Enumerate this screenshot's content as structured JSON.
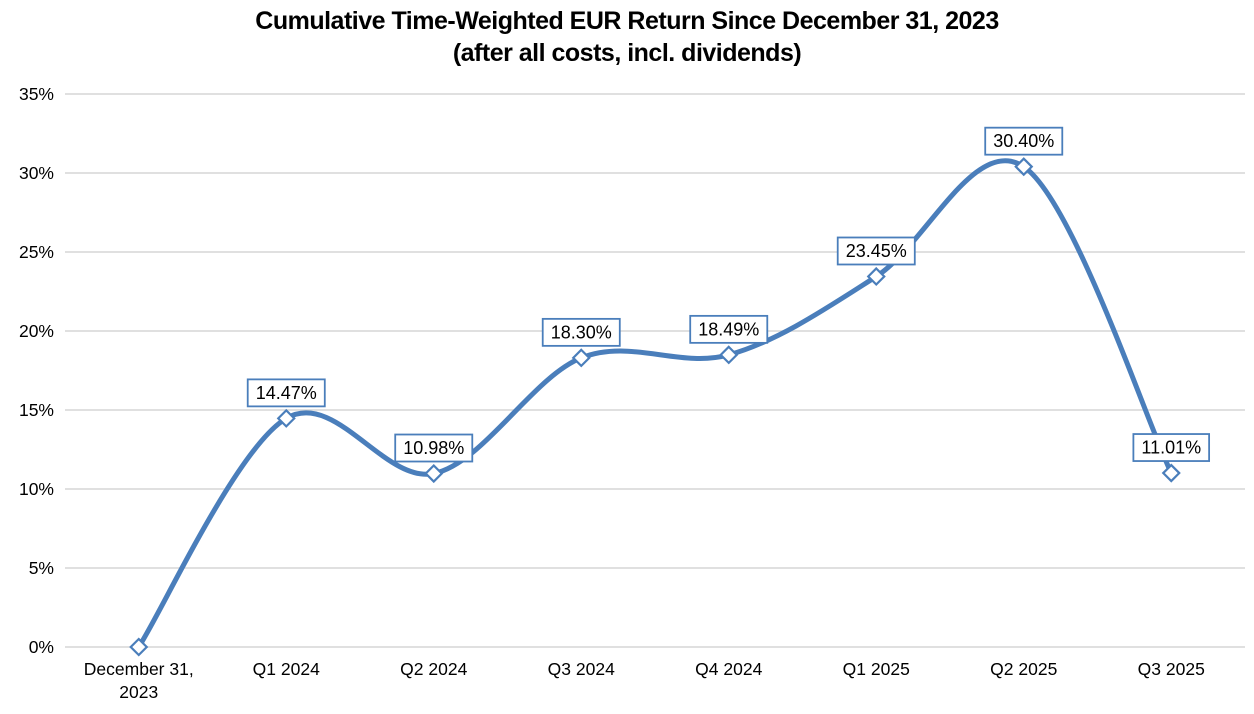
{
  "chart_data": {
    "type": "line",
    "title": "Cumulative Time-Weighted EUR Return Since December 31, 2023",
    "subtitle": "(after all costs, incl. dividends)",
    "categories": [
      "December 31, 2023",
      "Q1 2024",
      "Q2 2024",
      "Q3 2024",
      "Q4 2024",
      "Q1 2025",
      "Q2 2025",
      "Q3 2025"
    ],
    "category_label_lines": [
      [
        "December 31,",
        "2023"
      ],
      [
        "Q1 2024"
      ],
      [
        "Q2 2024"
      ],
      [
        "Q3 2024"
      ],
      [
        "Q4 2024"
      ],
      [
        "Q1 2025"
      ],
      [
        "Q2 2025"
      ],
      [
        "Q3 2025"
      ]
    ],
    "values": [
      0,
      14.47,
      10.98,
      18.3,
      18.49,
      23.45,
      30.4,
      11.01
    ],
    "point_labels": [
      "",
      "14.47%",
      "10.98%",
      "18.30%",
      "18.49%",
      "23.45%",
      "30.40%",
      "11.01%"
    ],
    "y_axis": {
      "min": 0,
      "max": 35,
      "step": 5,
      "tick_labels": [
        "0%",
        "5%",
        "10%",
        "15%",
        "20%",
        "25%",
        "30%",
        "35%"
      ]
    },
    "grid": true,
    "legend": "none",
    "line_smooth": true,
    "colors": {
      "line": "#4A7EBB",
      "marker_fill": "#FFFFFF",
      "marker_stroke": "#4A7EBB",
      "label_box_fill": "#FFFFFF",
      "label_box_border": "#4A7EBB",
      "label_text": "#000000",
      "gridline": "#D6D6D6",
      "axis_text": "#000000",
      "title_text": "#000000",
      "background": "#FFFFFF"
    }
  }
}
